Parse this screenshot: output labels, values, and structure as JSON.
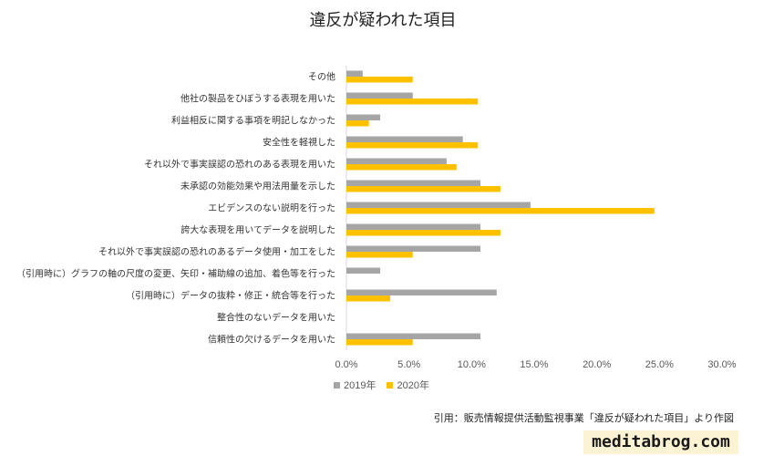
{
  "chart_data": {
    "type": "bar",
    "orientation": "horizontal",
    "title": "違反が疑われた項目",
    "xlabel": "",
    "ylabel": "",
    "categories": [
      "その他",
      "他社の製品をひぼうする表現を用いた",
      "利益相反に関する事項を明記しなかった",
      "安全性を軽視した",
      "それ以外で事実誤認の恐れのある表現を用いた",
      "未承認の効能効果や用法用量を示した",
      "エビデンスのない説明を行った",
      "誇大な表現を用いてデータを説明した",
      "それ以外で事実誤認の恐れのあるデータ使用・加工をした",
      "（引用時に）グラフの軸の尺度の変更、矢印・補助線の追加、着色等を行った",
      "（引用時に）データの抜粋・修正・統合等を行った",
      "整合性のないデータを用いた",
      "信頼性の欠けるデータを用いた"
    ],
    "series": [
      {
        "name": "2019年",
        "color": "#a5a5a5",
        "values": [
          1.3,
          5.3,
          2.7,
          9.3,
          8.0,
          10.7,
          14.7,
          10.7,
          10.7,
          2.7,
          12.0,
          0,
          10.7
        ]
      },
      {
        "name": "2020年",
        "color": "#ffc000",
        "values": [
          5.3,
          10.5,
          1.8,
          10.5,
          8.8,
          12.3,
          24.6,
          12.3,
          5.3,
          0,
          3.5,
          0,
          5.3
        ]
      }
    ],
    "xlim": [
      0,
      30
    ],
    "x_ticks": [
      0,
      5,
      10,
      15,
      20,
      25,
      30
    ],
    "x_tick_labels": [
      "0.0%",
      "5.0%",
      "10.0%",
      "15.0%",
      "20.0%",
      "25.0%",
      "30.0%"
    ],
    "grid": false,
    "legend": "bottom"
  },
  "source_note": "引用：販売情報提供活動監視事業「違反が疑われた項目」より作図",
  "watermark": "meditabrog.com"
}
